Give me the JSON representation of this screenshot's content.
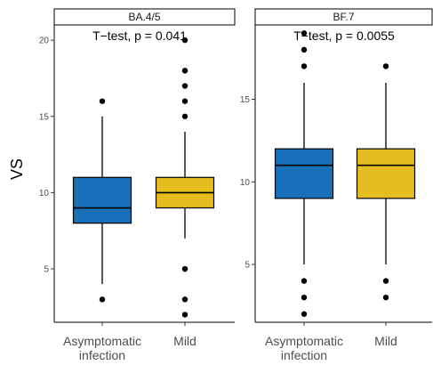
{
  "chart_data": {
    "type": "boxplot",
    "ylabel": "VS",
    "categories": [
      "Asymptomatic infection",
      "Mild"
    ],
    "category_lines": [
      [
        "Asymptomatic",
        "infection"
      ],
      [
        "Mild"
      ]
    ],
    "colors": {
      "Asymptomatic infection": "#1770b8",
      "Mild": "#e6bd1e"
    },
    "panels": [
      {
        "strip": "BA.4/5",
        "annotation": "T−test, p = 0.041",
        "ylim": [
          1.5,
          21.0
        ],
        "yticks": [
          5,
          10,
          15,
          20
        ],
        "boxes": [
          {
            "category": "Asymptomatic infection",
            "whisker_low": 4,
            "q1": 8,
            "median": 9,
            "q3": 11,
            "whisker_high": 15,
            "outliers": [
              3,
              16
            ]
          },
          {
            "category": "Mild",
            "whisker_low": 7,
            "q1": 9,
            "median": 10,
            "q3": 11,
            "whisker_high": 14,
            "outliers": [
              2,
              3,
              5,
              15,
              16,
              17,
              18,
              20
            ]
          }
        ]
      },
      {
        "strip": "BF.7",
        "annotation": "T−test, p = 0.0055",
        "ylim": [
          1.5,
          19.5
        ],
        "yticks": [
          5,
          10,
          15
        ],
        "boxes": [
          {
            "category": "Asymptomatic infection",
            "whisker_low": 5,
            "q1": 9,
            "median": 11,
            "q3": 12,
            "whisker_high": 16,
            "outliers": [
              2,
              3,
              4,
              17,
              18,
              19
            ]
          },
          {
            "category": "Mild",
            "whisker_low": 5,
            "q1": 9,
            "median": 11,
            "q3": 12,
            "whisker_high": 16,
            "outliers": [
              3,
              4,
              17
            ]
          }
        ]
      }
    ]
  }
}
